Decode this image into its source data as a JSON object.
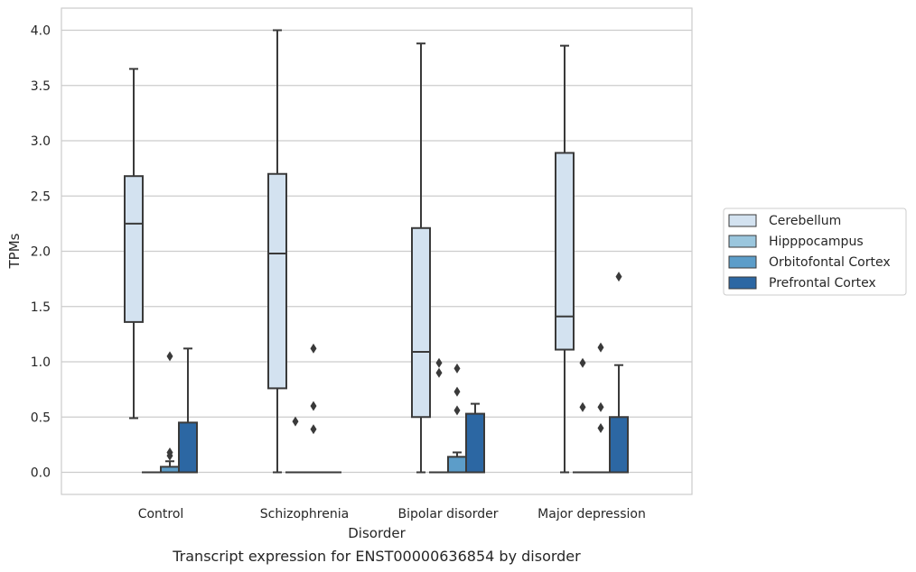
{
  "chart_data": {
    "type": "box",
    "caption": "Transcript expression for ENST00000636854 by disorder",
    "xlabel": "Disorder",
    "ylabel": "TPMs",
    "ylim": [
      -0.2,
      4.2
    ],
    "yticks": [
      "0.0",
      "0.5",
      "1.0",
      "1.5",
      "2.0",
      "2.5",
      "3.0",
      "3.5",
      "4.0"
    ],
    "grid": true,
    "legend_position": "right",
    "categories": [
      "Control",
      "Schizophrenia",
      "Bipolar disorder",
      "Major depression"
    ],
    "series": [
      {
        "name": "Cerebellum",
        "color": "#d3e2f0",
        "boxes": [
          {
            "whislo": 0.49,
            "q1": 1.36,
            "med": 2.25,
            "q3": 2.68,
            "whishi": 3.65,
            "fliers": []
          },
          {
            "whislo": 0.0,
            "q1": 0.76,
            "med": 1.98,
            "q3": 2.7,
            "whishi": 4.0,
            "fliers": []
          },
          {
            "whislo": 0.0,
            "q1": 0.5,
            "med": 1.09,
            "q3": 2.21,
            "whishi": 3.88,
            "fliers": []
          },
          {
            "whislo": 0.0,
            "q1": 1.11,
            "med": 1.41,
            "q3": 2.89,
            "whishi": 3.86,
            "fliers": []
          }
        ]
      },
      {
        "name": "Hipppocampus",
        "color": "#9ac6dd",
        "boxes": [
          {
            "whislo": 0.0,
            "q1": 0.0,
            "med": 0.0,
            "q3": 0.0,
            "whishi": 0.0,
            "fliers": []
          },
          {
            "whislo": 0.0,
            "q1": 0.0,
            "med": 0.0,
            "q3": 0.0,
            "whishi": 0.0,
            "fliers": [
              0.46
            ]
          },
          {
            "whislo": 0.0,
            "q1": 0.0,
            "med": 0.0,
            "q3": 0.0,
            "whishi": 0.0,
            "fliers": [
              0.99,
              0.9
            ]
          },
          {
            "whislo": 0.0,
            "q1": 0.0,
            "med": 0.0,
            "q3": 0.0,
            "whishi": 0.0,
            "fliers": [
              0.99,
              0.59
            ]
          }
        ]
      },
      {
        "name": "Orbitofontal Cortex",
        "color": "#5c9dc9",
        "boxes": [
          {
            "whislo": 0.0,
            "q1": 0.0,
            "med": 0.0,
            "q3": 0.05,
            "whishi": 0.1,
            "fliers": [
              1.05,
              0.18,
              0.15
            ]
          },
          {
            "whislo": 0.0,
            "q1": 0.0,
            "med": 0.0,
            "q3": 0.0,
            "whishi": 0.0,
            "fliers": [
              1.12,
              0.6,
              0.39
            ]
          },
          {
            "whislo": 0.0,
            "q1": 0.0,
            "med": 0.0,
            "q3": 0.14,
            "whishi": 0.18,
            "fliers": [
              0.94,
              0.73,
              0.56
            ]
          },
          {
            "whislo": 0.0,
            "q1": 0.0,
            "med": 0.0,
            "q3": 0.0,
            "whishi": 0.0,
            "fliers": [
              1.13,
              0.59,
              0.4
            ]
          }
        ]
      },
      {
        "name": "Prefrontal Cortex",
        "color": "#2c67a3",
        "boxes": [
          {
            "whislo": 0.0,
            "q1": 0.0,
            "med": 0.0,
            "q3": 0.45,
            "whishi": 1.12,
            "fliers": []
          },
          {
            "whislo": 0.0,
            "q1": 0.0,
            "med": 0.0,
            "q3": 0.0,
            "whishi": 0.0,
            "fliers": []
          },
          {
            "whislo": 0.0,
            "q1": 0.0,
            "med": 0.0,
            "q3": 0.53,
            "whishi": 0.62,
            "fliers": []
          },
          {
            "whislo": 0.0,
            "q1": 0.0,
            "med": 0.0,
            "q3": 0.5,
            "whishi": 0.97,
            "fliers": [
              1.77
            ]
          }
        ]
      }
    ]
  }
}
